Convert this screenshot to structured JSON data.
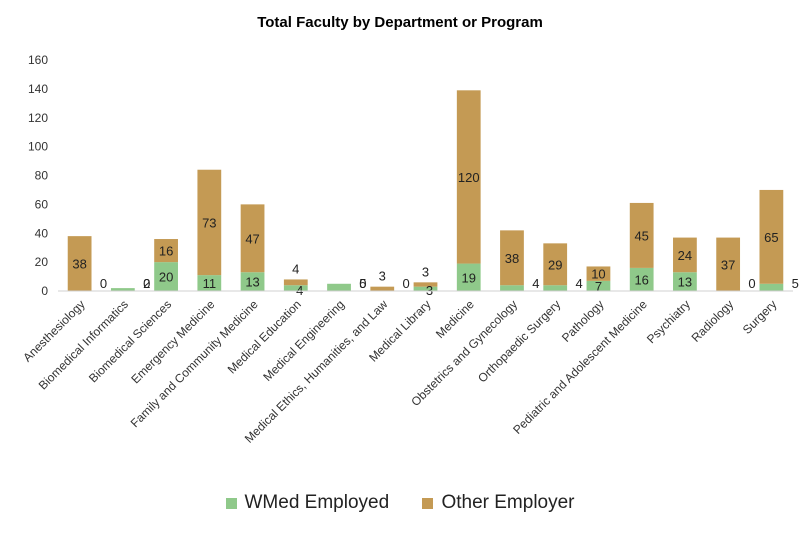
{
  "chart_data": {
    "type": "bar",
    "stacked": true,
    "title": "Total Faculty by Department or Program",
    "xlabel": "",
    "ylabel": "",
    "ylim": [
      0,
      160
    ],
    "yticks": [
      "0",
      "20",
      "40",
      "60",
      "80",
      "100",
      "120",
      "140",
      "160"
    ],
    "grid": false,
    "legend_position": "bottom",
    "categories": [
      "Anesthesiology",
      "Biomedical Informatics",
      "Biomedical Sciences",
      "Emergency Medicine",
      "Family and Community Medicine",
      "Medical Education",
      "Medical Engineering",
      "Medical Ethics, Humanities, and Law",
      "Medical Library",
      "Medicine",
      "Obstetrics and Gynecology",
      "Orthopaedic Surgery",
      "Pathology",
      "Pediatric and Adolescent Medicine",
      "Psychiatry",
      "Radiology",
      "Surgery"
    ],
    "series": [
      {
        "name": "WMed Employed",
        "color": "#8fc98a",
        "values": [
          0,
          2,
          20,
          11,
          13,
          4,
          5,
          0,
          3,
          19,
          4,
          4,
          7,
          16,
          13,
          0,
          5
        ]
      },
      {
        "name": "Other Employer",
        "color": "#c49a54",
        "values": [
          38,
          0,
          16,
          73,
          47,
          4,
          0,
          3,
          3,
          120,
          38,
          29,
          10,
          45,
          24,
          37,
          65
        ]
      }
    ]
  }
}
